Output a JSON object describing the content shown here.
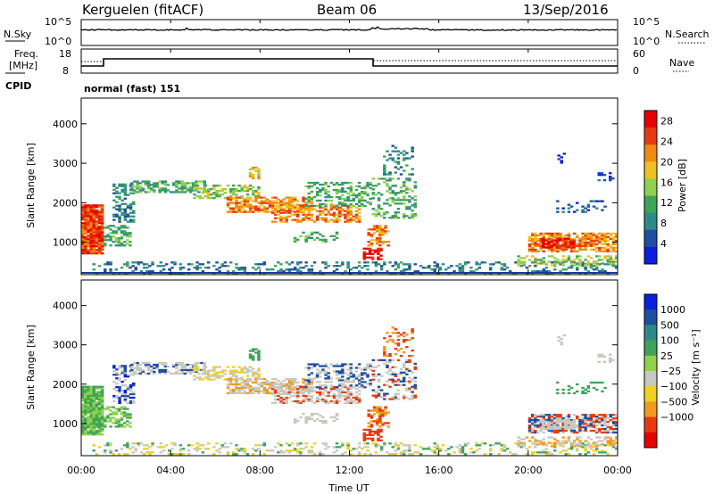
{
  "header": {
    "station": "Kerguelen (fitACF)",
    "beam": "Beam 06",
    "date": "13/Sep/2016"
  },
  "noise_panel": {
    "left_label": "N.Sky",
    "right_label": "N.Search",
    "left_ticks": [
      "10^5",
      "10^0"
    ],
    "right_ticks": [
      "10^5",
      "10^0"
    ]
  },
  "freq_panel": {
    "left_label_1": "Freq.",
    "left_label_2": "[MHz]",
    "left_ticks": [
      "18",
      "8"
    ],
    "right_label": "Nave",
    "right_ticks": [
      "60",
      "0"
    ],
    "cpid_label": "CPID",
    "cpid_value": "normal (fast) 151"
  },
  "colors": {
    "power": [
      "#0a1fe0",
      "#1e4fa0",
      "#2e8a8a",
      "#3fa35a",
      "#8fd14a",
      "#f0c020",
      "#f08a10",
      "#e83a10",
      "#e80000"
    ],
    "velocity": [
      "#0a1fe0",
      "#1e4fa0",
      "#2e8a8a",
      "#3fa35a",
      "#8fd14a",
      "#c8c8c0",
      "#f0d020",
      "#f09a20",
      "#e83a10",
      "#e80000"
    ],
    "ground": "#c8c8c0"
  },
  "chart_data": [
    {
      "type": "heatmap",
      "name": "power",
      "xlabel": "",
      "ylabel": "Slant Range [km]",
      "xlim_hours": [
        0,
        24
      ],
      "ylim": [
        180,
        4650
      ],
      "y_ticks": [
        "1000",
        "2000",
        "3000",
        "4000"
      ],
      "colorbar_label": "Power [dB]",
      "colorbar_ticks": [
        "4",
        "8",
        "12",
        "16",
        "20",
        "24",
        "28"
      ],
      "colorbar_range": [
        0,
        30
      ]
    },
    {
      "type": "heatmap",
      "name": "velocity",
      "xlabel": "Time UT",
      "ylabel": "Slant Range [km]",
      "xlim_hours": [
        0,
        24
      ],
      "ylim": [
        180,
        4650
      ],
      "x_ticks": [
        "00:00",
        "04:00",
        "08:00",
        "12:00",
        "16:00",
        "20:00",
        "00:00"
      ],
      "y_ticks": [
        "1000",
        "2000",
        "3000",
        "4000"
      ],
      "colorbar_label": "Velocity [m s⁻¹]",
      "colorbar_ticks": [
        "1000",
        "500",
        "100",
        "25",
        "−25",
        "−100",
        "−500",
        "−1000"
      ]
    }
  ]
}
